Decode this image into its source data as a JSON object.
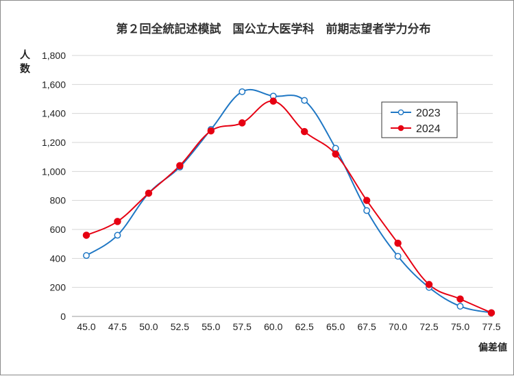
{
  "chart_data": {
    "type": "line",
    "title": "第２回全統記述模試　国公立大医学科　前期志望者学力分布",
    "ylabel": "人数",
    "xlabel": "偏差値",
    "x": [
      "45.0",
      "47.5",
      "50.0",
      "52.5",
      "55.0",
      "57.5",
      "60.0",
      "62.5",
      "65.0",
      "67.5",
      "70.0",
      "72.5",
      "75.0",
      "77.5"
    ],
    "y_ticks": [
      "0",
      "200",
      "400",
      "600",
      "800",
      "1,000",
      "1,200",
      "1,400",
      "1,600",
      "1,800"
    ],
    "ylim": [
      0,
      1800
    ],
    "grid": true,
    "legend_position": "top-right",
    "series": [
      {
        "name": "2023",
        "color": "#1f77c4",
        "marker": "open-circle",
        "values": [
          420,
          560,
          850,
          1030,
          1290,
          1550,
          1520,
          1490,
          1160,
          730,
          415,
          200,
          70,
          25
        ]
      },
      {
        "name": "2024",
        "color": "#e60012",
        "marker": "filled-circle",
        "values": [
          560,
          655,
          850,
          1040,
          1280,
          1335,
          1485,
          1275,
          1120,
          800,
          505,
          220,
          120,
          25
        ]
      }
    ]
  }
}
